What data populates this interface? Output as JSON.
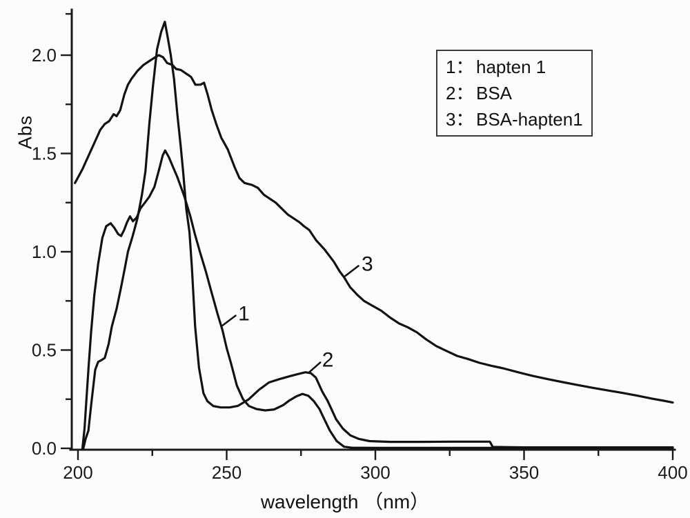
{
  "figure": {
    "background": "#fcfcfc",
    "line_color": "#121212",
    "axis_color": "#1a1a1a"
  },
  "chart_data": {
    "type": "line",
    "title": "",
    "xlabel": "wavelength （nm）",
    "ylabel": "Abs",
    "xlim": [
      200,
      400
    ],
    "ylim": [
      0,
      2.23
    ],
    "grid": false,
    "legend_position": "top-right",
    "x_ticks": [
      {
        "v": 200,
        "label": "200"
      },
      {
        "v": 250,
        "label": "250"
      },
      {
        "v": 300,
        "label": "300"
      },
      {
        "v": 350,
        "label": "350"
      },
      {
        "v": 400,
        "label": "400"
      }
    ],
    "x_minor_ticks": [
      225,
      275,
      325,
      375
    ],
    "y_ticks": [
      {
        "v": 0.0,
        "label": "0.0"
      },
      {
        "v": 0.5,
        "label": "0.5"
      },
      {
        "v": 1.0,
        "label": "1.0"
      },
      {
        "v": 1.5,
        "label": "1.5"
      },
      {
        "v": 2.0,
        "label": "2.0"
      }
    ],
    "y_minor_ticks": [
      0.25,
      0.75,
      1.25,
      1.75,
      2.21
    ],
    "legend": {
      "entries": [
        {
          "key": "1：",
          "name": "hapten 1"
        },
        {
          "key": "2：",
          "name": "BSA"
        },
        {
          "key": "3：",
          "name": "BSA-hapten1"
        }
      ]
    },
    "annotations": [
      {
        "label": "1",
        "x": 255.8,
        "y": 0.685,
        "line": [
          248.6,
          0.625,
          253.0,
          0.675
        ]
      },
      {
        "label": "2",
        "x": 284.0,
        "y": 0.45,
        "line": [
          277.8,
          0.388,
          281.5,
          0.437
        ]
      },
      {
        "label": "3",
        "x": 297.3,
        "y": 0.937,
        "line": [
          289.9,
          0.877,
          294.3,
          0.928
        ]
      }
    ],
    "series": [
      {
        "name": "hapten 1",
        "label": "1",
        "points": [
          [
            201.5,
            0.0
          ],
          [
            202.2,
            0.1
          ],
          [
            202.8,
            0.24
          ],
          [
            203.6,
            0.42
          ],
          [
            204.4,
            0.59
          ],
          [
            205.5,
            0.78
          ],
          [
            206.8,
            0.94
          ],
          [
            208.2,
            1.07
          ],
          [
            209.5,
            1.13
          ],
          [
            211.0,
            1.145
          ],
          [
            212.3,
            1.12
          ],
          [
            213.5,
            1.09
          ],
          [
            214.5,
            1.08
          ],
          [
            215.5,
            1.11
          ],
          [
            216.5,
            1.15
          ],
          [
            217.5,
            1.18
          ],
          [
            218.5,
            1.155
          ],
          [
            219.8,
            1.175
          ],
          [
            221.0,
            1.22
          ],
          [
            222.5,
            1.25
          ],
          [
            224.0,
            1.28
          ],
          [
            225.7,
            1.33
          ],
          [
            227.3,
            1.42
          ],
          [
            228.5,
            1.49
          ],
          [
            229.3,
            1.515
          ],
          [
            230.6,
            1.48
          ],
          [
            232.0,
            1.43
          ],
          [
            233.4,
            1.38
          ],
          [
            235.8,
            1.28
          ],
          [
            237.8,
            1.18
          ],
          [
            239.3,
            1.09
          ],
          [
            241.0,
            1.0
          ],
          [
            243.0,
            0.9
          ],
          [
            245.0,
            0.79
          ],
          [
            247.0,
            0.68
          ],
          [
            248.6,
            0.6
          ],
          [
            250.0,
            0.51
          ],
          [
            251.5,
            0.43
          ],
          [
            253.4,
            0.32
          ],
          [
            255.5,
            0.25
          ],
          [
            257.5,
            0.215
          ],
          [
            260.0,
            0.2
          ],
          [
            263.0,
            0.193
          ],
          [
            266.0,
            0.198
          ],
          [
            269.0,
            0.22
          ],
          [
            271.2,
            0.245
          ],
          [
            273.5,
            0.265
          ],
          [
            275.5,
            0.277
          ],
          [
            277.5,
            0.267
          ],
          [
            279.3,
            0.24
          ],
          [
            281.2,
            0.2
          ],
          [
            283.0,
            0.143
          ],
          [
            284.7,
            0.09
          ],
          [
            287.0,
            0.037
          ],
          [
            289.5,
            0.008
          ],
          [
            292.0,
            0.003
          ],
          [
            300.0,
            0.002
          ],
          [
            340.0,
            0.002
          ],
          [
            400.0,
            0.002
          ]
        ]
      },
      {
        "name": "BSA",
        "label": "2",
        "points": [
          [
            201.8,
            0.0
          ],
          [
            202.6,
            0.05
          ],
          [
            203.5,
            0.09
          ],
          [
            204.5,
            0.23
          ],
          [
            205.8,
            0.4
          ],
          [
            206.8,
            0.44
          ],
          [
            208.0,
            0.45
          ],
          [
            209.0,
            0.46
          ],
          [
            210.3,
            0.53
          ],
          [
            211.4,
            0.62
          ],
          [
            213.0,
            0.71
          ],
          [
            214.5,
            0.82
          ],
          [
            215.8,
            0.92
          ],
          [
            216.8,
            1.0
          ],
          [
            218.4,
            1.08
          ],
          [
            220.0,
            1.17
          ],
          [
            221.5,
            1.29
          ],
          [
            222.7,
            1.41
          ],
          [
            224.0,
            1.65
          ],
          [
            225.2,
            1.84
          ],
          [
            226.6,
            2.03
          ],
          [
            228.0,
            2.12
          ],
          [
            229.2,
            2.17
          ],
          [
            230.3,
            2.08
          ],
          [
            231.2,
            2.0
          ],
          [
            232.3,
            1.88
          ],
          [
            233.4,
            1.7
          ],
          [
            234.6,
            1.53
          ],
          [
            235.4,
            1.4
          ],
          [
            236.4,
            1.22
          ],
          [
            237.5,
            1.1
          ],
          [
            238.3,
            0.92
          ],
          [
            239.4,
            0.62
          ],
          [
            240.7,
            0.41
          ],
          [
            242.2,
            0.28
          ],
          [
            243.5,
            0.24
          ],
          [
            245.5,
            0.215
          ],
          [
            248.0,
            0.208
          ],
          [
            251.0,
            0.208
          ],
          [
            253.8,
            0.216
          ],
          [
            257.3,
            0.248
          ],
          [
            260.8,
            0.297
          ],
          [
            264.2,
            0.335
          ],
          [
            267.7,
            0.352
          ],
          [
            271.2,
            0.367
          ],
          [
            274.0,
            0.378
          ],
          [
            276.5,
            0.387
          ],
          [
            278.3,
            0.382
          ],
          [
            280.0,
            0.36
          ],
          [
            282.1,
            0.29
          ],
          [
            284.0,
            0.24
          ],
          [
            286.8,
            0.148
          ],
          [
            289.1,
            0.1
          ],
          [
            291.6,
            0.066
          ],
          [
            294.4,
            0.048
          ],
          [
            298.0,
            0.037
          ],
          [
            305.0,
            0.033
          ],
          [
            315.0,
            0.033
          ],
          [
            326.0,
            0.034
          ],
          [
            338.5,
            0.034
          ],
          [
            339.5,
            0.007
          ],
          [
            350.0,
            0.005
          ],
          [
            400.0,
            0.005
          ]
        ]
      },
      {
        "name": "BSA-hapten1",
        "label": "3",
        "points": [
          [
            199.0,
            1.35
          ],
          [
            201.5,
            1.42
          ],
          [
            203.0,
            1.47
          ],
          [
            204.5,
            1.52
          ],
          [
            206.0,
            1.57
          ],
          [
            207.5,
            1.62
          ],
          [
            209.0,
            1.65
          ],
          [
            210.5,
            1.665
          ],
          [
            212.0,
            1.7
          ],
          [
            213.0,
            1.69
          ],
          [
            214.2,
            1.72
          ],
          [
            215.6,
            1.8
          ],
          [
            216.8,
            1.85
          ],
          [
            218.0,
            1.88
          ],
          [
            220.0,
            1.92
          ],
          [
            222.0,
            1.95
          ],
          [
            224.0,
            1.97
          ],
          [
            226.0,
            1.99
          ],
          [
            227.2,
            2.0
          ],
          [
            228.6,
            1.99
          ],
          [
            230.0,
            1.96
          ],
          [
            231.8,
            1.95
          ],
          [
            233.0,
            1.93
          ],
          [
            234.6,
            1.925
          ],
          [
            236.5,
            1.905
          ],
          [
            238.0,
            1.89
          ],
          [
            239.5,
            1.85
          ],
          [
            241.2,
            1.85
          ],
          [
            242.4,
            1.86
          ],
          [
            243.6,
            1.8
          ],
          [
            245.0,
            1.72
          ],
          [
            246.5,
            1.65
          ],
          [
            248.2,
            1.58
          ],
          [
            250.4,
            1.52
          ],
          [
            252.7,
            1.43
          ],
          [
            254.3,
            1.375
          ],
          [
            256.0,
            1.35
          ],
          [
            258.5,
            1.34
          ],
          [
            260.5,
            1.325
          ],
          [
            262.5,
            1.29
          ],
          [
            264.5,
            1.27
          ],
          [
            266.5,
            1.25
          ],
          [
            268.5,
            1.22
          ],
          [
            270.5,
            1.19
          ],
          [
            272.5,
            1.17
          ],
          [
            274.5,
            1.15
          ],
          [
            276.0,
            1.13
          ],
          [
            277.8,
            1.11
          ],
          [
            280.0,
            1.06
          ],
          [
            283.0,
            1.01
          ],
          [
            286.0,
            0.95
          ],
          [
            288.0,
            0.9
          ],
          [
            289.5,
            0.87
          ],
          [
            291.5,
            0.82
          ],
          [
            294.0,
            0.78
          ],
          [
            296.2,
            0.75
          ],
          [
            298.5,
            0.73
          ],
          [
            302.0,
            0.7
          ],
          [
            305.0,
            0.665
          ],
          [
            308.0,
            0.635
          ],
          [
            311.0,
            0.615
          ],
          [
            314.0,
            0.59
          ],
          [
            317.0,
            0.555
          ],
          [
            320.5,
            0.52
          ],
          [
            324.0,
            0.495
          ],
          [
            327.5,
            0.47
          ],
          [
            331.0,
            0.455
          ],
          [
            335.0,
            0.435
          ],
          [
            339.0,
            0.42
          ],
          [
            343.0,
            0.407
          ],
          [
            348.0,
            0.387
          ],
          [
            353.0,
            0.368
          ],
          [
            358.0,
            0.352
          ],
          [
            363.0,
            0.337
          ],
          [
            368.0,
            0.322
          ],
          [
            373.0,
            0.308
          ],
          [
            378.0,
            0.295
          ],
          [
            383.0,
            0.282
          ],
          [
            388.0,
            0.268
          ],
          [
            393.0,
            0.253
          ],
          [
            397.0,
            0.242
          ],
          [
            400.0,
            0.233
          ]
        ]
      }
    ]
  }
}
